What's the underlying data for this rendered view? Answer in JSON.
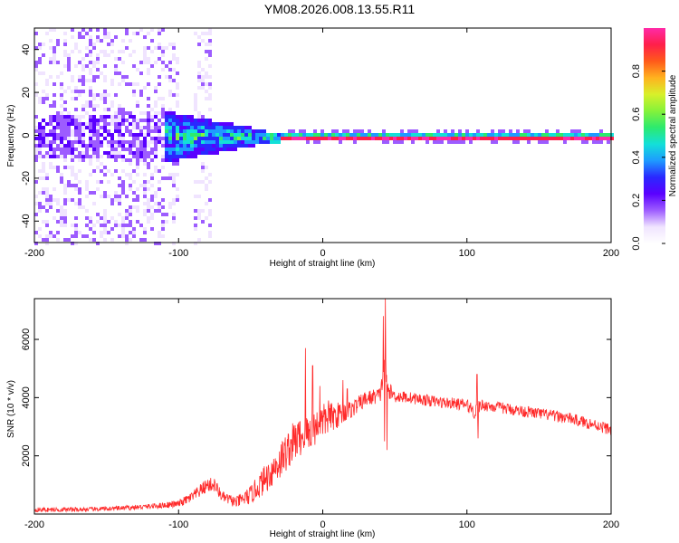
{
  "figure_title": "YM08.2026.008.13.55.R11",
  "colors": {
    "snr_line": "#ff2a2a",
    "axis": "#000000",
    "colormap": [
      "#ffffff",
      "#f0e4ff",
      "#9d5cff",
      "#5a00ff",
      "#2a28ff",
      "#1e9bff",
      "#13e0d8",
      "#2cea6e",
      "#86f23a",
      "#d8f02a",
      "#ffb21f",
      "#ff5a1a",
      "#ff1f4a",
      "#ff2aa8"
    ]
  },
  "chart_data": [
    {
      "type": "heatmap",
      "title": "YM08.2026.008.13.55.R11",
      "xlabel": "Height of straight line (km)",
      "ylabel": "Frequency (Hz)",
      "xlim": [
        -200,
        200
      ],
      "ylim": [
        -50,
        50
      ],
      "x_ticks": [
        -200,
        -100,
        0,
        100,
        200
      ],
      "x_tick_labels": [
        "-200",
        "-100",
        "0",
        "100",
        "200"
      ],
      "y_ticks": [
        -40,
        -20,
        0,
        20,
        40
      ],
      "y_tick_labels": [
        "-40",
        "-20",
        "0",
        "20",
        "40"
      ],
      "colorbar": {
        "label": "Normalized spectral amplitude",
        "range": [
          0.0,
          1.0
        ],
        "ticks": [
          0.0,
          0.2,
          0.4,
          0.6,
          0.8
        ],
        "tick_labels": [
          "0.0",
          "0.2",
          "0.4",
          "0.6",
          "0.8"
        ]
      },
      "description_regions": [
        {
          "x_range": [
            -200,
            -110
          ],
          "freq_spread": 50,
          "amplitude": 0.12,
          "note": "broadband noise"
        },
        {
          "x_range": [
            -110,
            -40
          ],
          "freq_spread": 8,
          "amplitude": 0.45,
          "note": "widening signal"
        },
        {
          "x_range": [
            -30,
            200
          ],
          "freq_spread": 1.5,
          "amplitude": 0.95,
          "note": "narrow line at 0 Hz"
        }
      ]
    },
    {
      "type": "line",
      "title": "",
      "xlabel": "Height of straight line (km)",
      "ylabel": "SNR (10 * v/v)",
      "xlim": [
        -200,
        200
      ],
      "ylim": [
        0,
        7400
      ],
      "x_ticks": [
        -200,
        -100,
        0,
        100,
        200
      ],
      "x_tick_labels": [
        "-200",
        "-100",
        "0",
        "100",
        "200"
      ],
      "y_ticks": [
        2000,
        4000,
        6000
      ],
      "y_tick_labels": [
        "2000",
        "4000",
        "6000"
      ],
      "series": [
        {
          "name": "SNR",
          "x": [
            -200,
            -180,
            -160,
            -140,
            -120,
            -100,
            -90,
            -80,
            -75,
            -70,
            -60,
            -50,
            -40,
            -30,
            -20,
            -10,
            0,
            10,
            20,
            30,
            40,
            43,
            45,
            50,
            60,
            80,
            100,
            106,
            110,
            130,
            150,
            170,
            190,
            200
          ],
          "values": [
            150,
            150,
            160,
            200,
            260,
            350,
            600,
            1000,
            1000,
            600,
            400,
            650,
            1200,
            1800,
            2500,
            2800,
            3200,
            3400,
            3600,
            3950,
            4100,
            5200,
            4300,
            4050,
            4000,
            3850,
            3750,
            3500,
            3750,
            3600,
            3450,
            3300,
            3050,
            2900
          ],
          "noise": [
            80,
            80,
            80,
            80,
            90,
            120,
            200,
            250,
            250,
            180,
            200,
            320,
            500,
            650,
            700,
            650,
            600,
            450,
            300,
            280,
            260,
            500,
            300,
            220,
            200,
            200,
            200,
            300,
            200,
            200,
            200,
            200,
            200,
            200
          ],
          "spikes": [
            {
              "x": -12,
              "value": 5700
            },
            {
              "x": -7,
              "value": 5100
            },
            {
              "x": -2,
              "value": 4400
            },
            {
              "x": 4,
              "value": 3900
            },
            {
              "x": 14,
              "value": 4600
            },
            {
              "x": 17,
              "value": 4300
            },
            {
              "x": 42,
              "value": 6800
            },
            {
              "x": 43.5,
              "value": 7400
            },
            {
              "x": 44.5,
              "value": 2200
            },
            {
              "x": 42.8,
              "value": 2500
            },
            {
              "x": 107,
              "value": 4800
            },
            {
              "x": 107.8,
              "value": 2600
            }
          ]
        }
      ]
    }
  ]
}
